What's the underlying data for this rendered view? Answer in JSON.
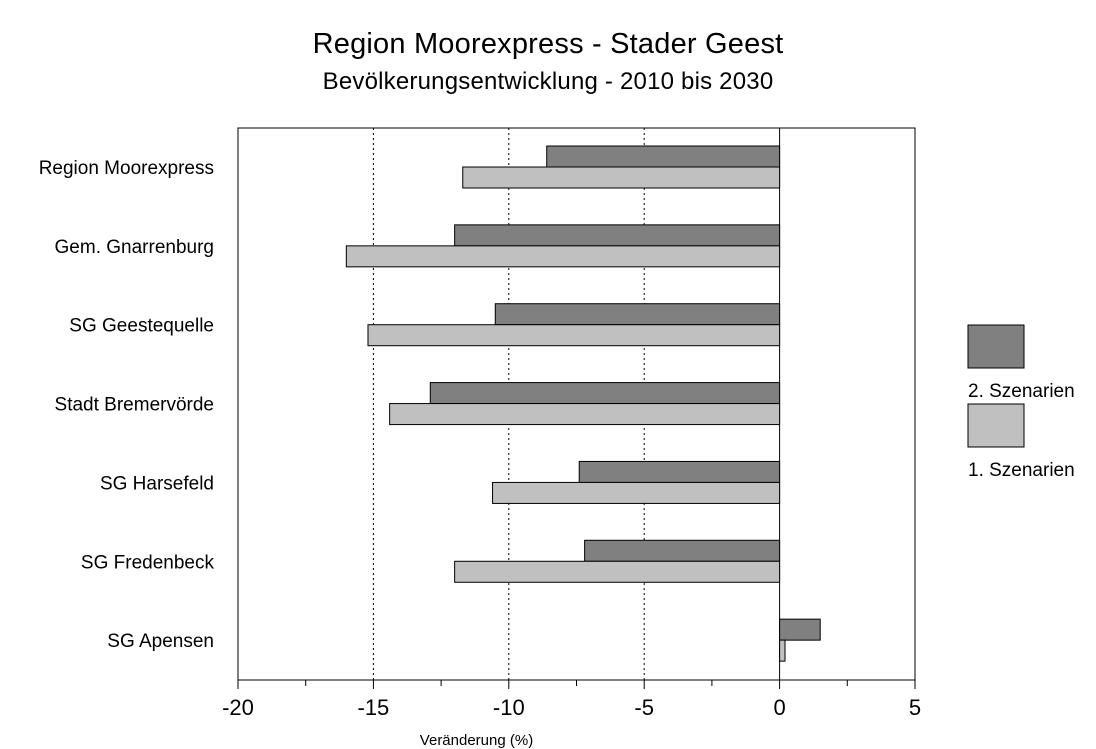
{
  "chart_data": {
    "type": "bar",
    "orientation": "horizontal",
    "title": "Region Moorexpress - Stader Geest",
    "subtitle": "Bevölkerungsentwicklung - 2010 bis 2030",
    "xlabel": "Veränderung (%)",
    "ylabel": "",
    "xlim": [
      -20,
      5
    ],
    "xticks": [
      -20,
      -15,
      -10,
      -5,
      0,
      5
    ],
    "xtick_labels": [
      "-20",
      "-15",
      "-10",
      "-5",
      "0",
      "5"
    ],
    "grid": "vertical dotted at -15, -10, -5",
    "legend_position": "right",
    "categories": [
      "Region Moorexpress",
      "Gem. Gnarrenburg",
      "SG Geestequelle",
      "Stadt Bremervörde",
      "SG Harsefeld",
      "SG Fredenbeck",
      "SG Apensen"
    ],
    "series": [
      {
        "name": "2. Szenarien",
        "color": "#808080",
        "values": [
          -8.6,
          -12.0,
          -10.5,
          -12.9,
          -7.4,
          -7.2,
          1.5
        ]
      },
      {
        "name": "1. Szenarien",
        "color": "#c0c0c0",
        "values": [
          -11.7,
          -16.0,
          -15.2,
          -14.4,
          -10.6,
          -12.0,
          0.2
        ]
      }
    ]
  }
}
